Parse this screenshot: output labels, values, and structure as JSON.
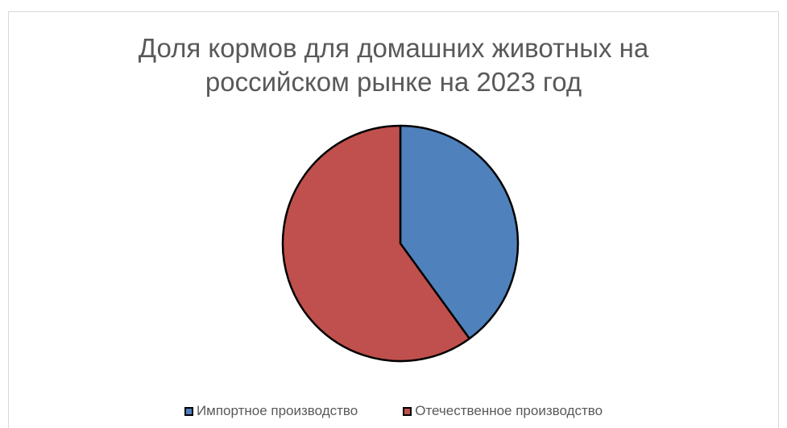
{
  "chart_data": {
    "type": "pie",
    "title": "Доля кормов для домашних животных на российском рынке на 2023 год",
    "categories": [
      "Импортное производство",
      "Отечественное производство"
    ],
    "values": [
      40,
      60
    ],
    "colors": [
      "#4f81bd",
      "#c0504d"
    ],
    "legend": "bottom"
  }
}
